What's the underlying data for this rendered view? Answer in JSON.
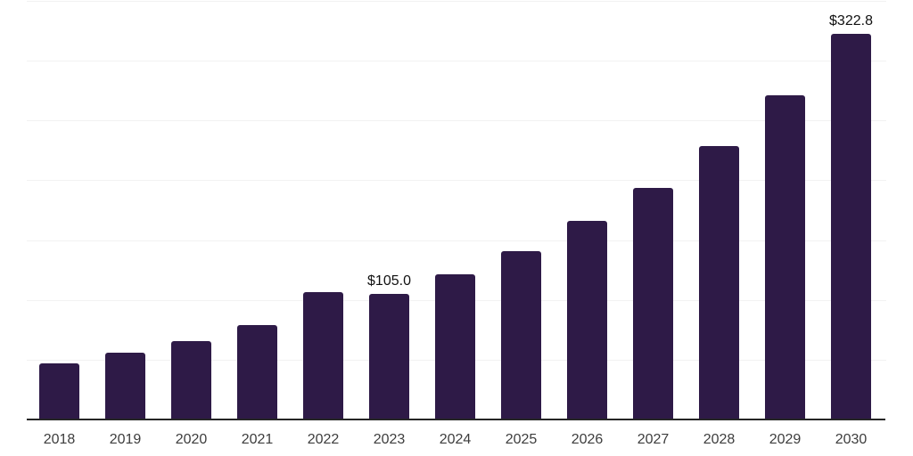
{
  "chart_data": {
    "type": "bar",
    "title": "",
    "xlabel": "",
    "ylabel": "",
    "categories": [
      "2018",
      "2019",
      "2020",
      "2021",
      "2022",
      "2023",
      "2024",
      "2025",
      "2026",
      "2027",
      "2028",
      "2029",
      "2030"
    ],
    "values": [
      46.9,
      56.1,
      65.4,
      78.9,
      106.4,
      105.0,
      121.7,
      141.0,
      165.8,
      193.3,
      228.4,
      270.9,
      322.8
    ],
    "value_prefix": "$",
    "data_labels": [
      {
        "category": "2023",
        "text": "$105.0"
      },
      {
        "category": "2030",
        "text": "$322.8"
      }
    ],
    "ylim": [
      0,
      350
    ],
    "gridline_step": 50,
    "grid": "horizontal",
    "y_axis_labels_visible": false,
    "legend": "none",
    "colors": {
      "bar": "#2E1A47",
      "axis_line": "#262626",
      "gridline": "#F2F2F2",
      "data_label_text": "#111111",
      "tick_label_text": "#3D3D3D",
      "background": "#FFFFFF"
    }
  }
}
